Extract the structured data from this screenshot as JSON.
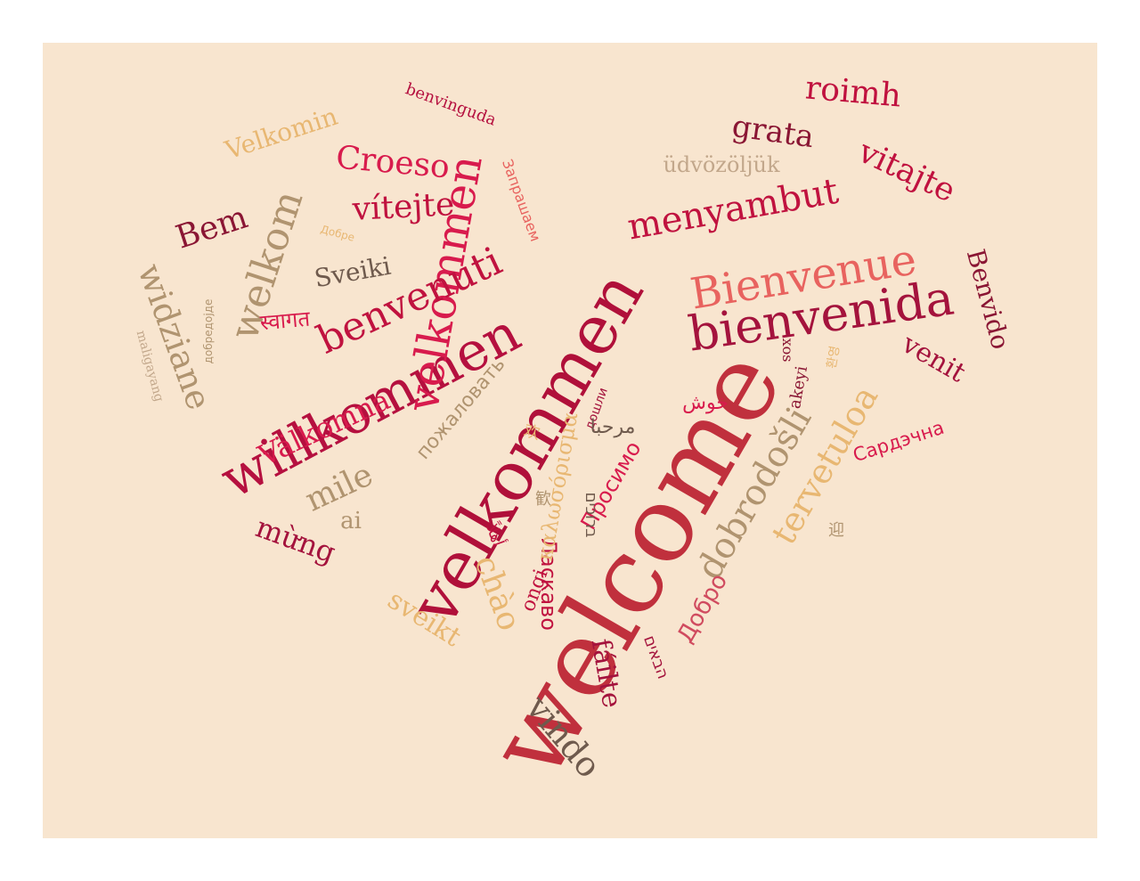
{
  "image": {
    "background": "#f8e5cf",
    "palette": [
      "#c0123f",
      "#d81b4d",
      "#e8635f",
      "#a4133d",
      "#b09470",
      "#e8b772",
      "#6f5a4d",
      "#8a1634"
    ],
    "words": [
      {
        "text": "welcome",
        "color": "#c0303d"
      },
      {
        "text": "velkommen",
        "color": "#b0103a"
      },
      {
        "text": "willkommen",
        "color": "#b5103f"
      },
      {
        "text": "bienvenida",
        "color": "#a4133d"
      },
      {
        "text": "Bienvenue",
        "color": "#e8635f"
      },
      {
        "text": "velkommen",
        "color": "#d81b4d"
      },
      {
        "text": "benvenuti",
        "color": "#c0123f"
      },
      {
        "text": "welkom",
        "color": "#b09470"
      },
      {
        "text": "menyambut",
        "color": "#c0123f"
      },
      {
        "text": "dobrodošli",
        "color": "#b09470"
      },
      {
        "text": "tervetuloa",
        "color": "#e8b772"
      },
      {
        "text": "widziane",
        "color": "#b09470"
      },
      {
        "text": "Croeso",
        "color": "#d81b4d"
      },
      {
        "text": "vítejte",
        "color": "#c0123f"
      },
      {
        "text": "Bem",
        "color": "#8a1634"
      },
      {
        "text": "Velkomin",
        "color": "#e8b772"
      },
      {
        "text": "benvinguda",
        "color": "#b5103f"
      },
      {
        "text": "roimh",
        "color": "#c0123f"
      },
      {
        "text": "grata",
        "color": "#8a1634"
      },
      {
        "text": "vitajte",
        "color": "#c0123f"
      },
      {
        "text": "üdvözöljük",
        "color": "#c2a78b"
      },
      {
        "text": "Benvido",
        "color": "#8a1634"
      },
      {
        "text": "venit",
        "color": "#a4133d"
      },
      {
        "text": "Sveiki",
        "color": "#6f5a4d"
      },
      {
        "text": "Välkomna",
        "color": "#d81b4d"
      },
      {
        "text": "mile",
        "color": "#b09470"
      },
      {
        "text": "ai",
        "color": "#b09470"
      },
      {
        "text": "mừng",
        "color": "#a4133d"
      },
      {
        "text": "chào",
        "color": "#e8b772"
      },
      {
        "text": "sveikt",
        "color": "#e8b772"
      },
      {
        "text": "vindo",
        "color": "#6f5a4d"
      },
      {
        "text": "fáilte",
        "color": "#a4133d"
      },
      {
        "text": "Ласкаво",
        "color": "#c0123f"
      },
      {
        "text": "Просимо",
        "color": "#d81b4d"
      },
      {
        "text": "Добро",
        "color": "#d04b5f"
      },
      {
        "text": "Сардэчна",
        "color": "#d81b4d"
      },
      {
        "text": "пожаловать",
        "color": "#b09470"
      },
      {
        "text": "καλωσόρισμα",
        "color": "#e8b772"
      },
      {
        "text": "Запрашаем",
        "color": "#e8635f"
      },
      {
        "text": "добредојде",
        "color": "#b09470"
      },
      {
        "text": "maligayang",
        "color": "#c2a78b"
      },
      {
        "text": "Добре",
        "color": "#e8b772"
      },
      {
        "text": "ongi",
        "color": "#c0123f"
      },
      {
        "text": "akeyi",
        "color": "#8a1634"
      },
      {
        "text": "xos",
        "color": "#8a1634"
      },
      {
        "text": "дошли",
        "color": "#a4133d"
      },
      {
        "text": "הבאים",
        "color": "#a4133d"
      },
      {
        "text": "ברוכים",
        "color": "#6f5a4d"
      },
      {
        "text": "مرحبا",
        "color": "#6f5a4d"
      },
      {
        "text": "أهلاً",
        "color": "#c0123f"
      },
      {
        "text": "خوش",
        "color": "#d81b4d"
      },
      {
        "text": "स्वागत",
        "color": "#d81b4d"
      },
      {
        "text": "歓",
        "color": "#b09470"
      },
      {
        "text": "迎",
        "color": "#b09470"
      },
      {
        "text": "欢",
        "color": "#e8b772"
      },
      {
        "text": "환영",
        "color": "#e8b772"
      }
    ]
  }
}
